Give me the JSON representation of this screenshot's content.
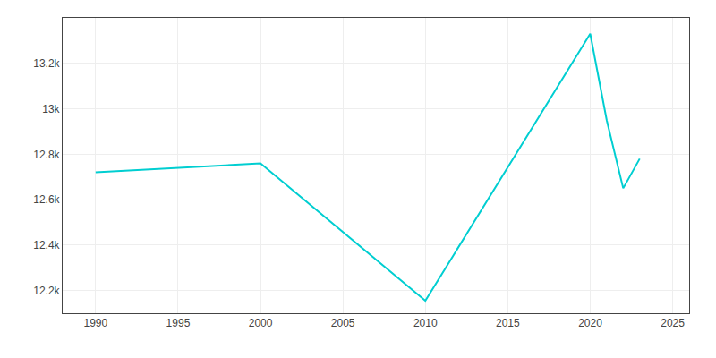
{
  "chart_data": {
    "type": "line",
    "x": [
      1990,
      1995,
      2000,
      2010,
      2020,
      2021,
      2022,
      2023
    ],
    "values": [
      12720,
      12740,
      12760,
      12155,
      13330,
      12950,
      12650,
      12780
    ],
    "color": "#00CED1",
    "xlim": [
      1988,
      2026
    ],
    "ylim": [
      12100,
      13400
    ],
    "xticks": [
      1990,
      1995,
      2000,
      2005,
      2010,
      2015,
      2020,
      2025
    ],
    "yticks": [
      {
        "value": 12200,
        "label": "12.2k"
      },
      {
        "value": 12400,
        "label": "12.4k"
      },
      {
        "value": 12600,
        "label": "12.6k"
      },
      {
        "value": 12800,
        "label": "12.8k"
      },
      {
        "value": 13000,
        "label": "13k"
      },
      {
        "value": 13200,
        "label": "13.2k"
      }
    ],
    "grid": true
  }
}
